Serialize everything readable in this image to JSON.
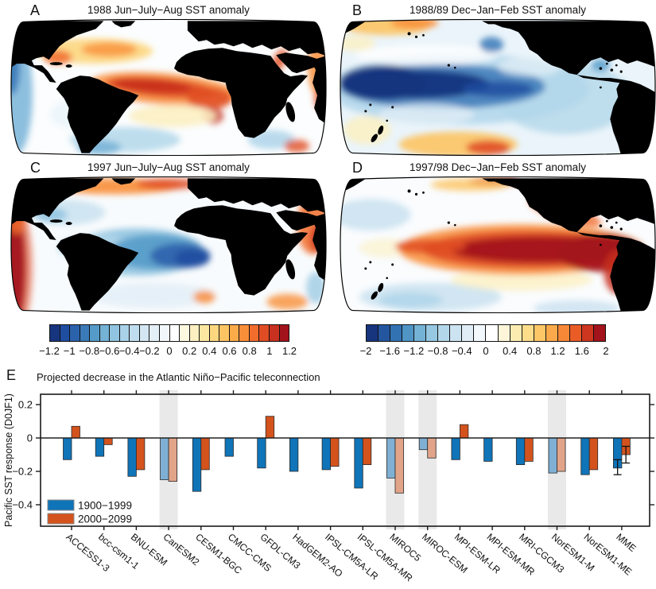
{
  "figure": {
    "panels": [
      {
        "id": "a",
        "label": "A",
        "title": "1988 Jun−July−Aug SST anomaly"
      },
      {
        "id": "b",
        "label": "B",
        "title": "1988/89 Dec−Jan−Feb SST anomaly"
      },
      {
        "id": "c",
        "label": "C",
        "title": "1997 Jun−July−Aug SST anomaly"
      },
      {
        "id": "d",
        "label": "D",
        "title": "1997/98 Dec−Jan−Feb SST anomaly"
      }
    ],
    "colorbars": [
      {
        "id": "ac",
        "ticks": [
          "−1.2",
          "−1",
          "−0.8",
          "−0.6",
          "−0.4",
          "−0.2",
          "0",
          "0.2",
          "0.4",
          "0.6",
          "0.8",
          "1",
          "1.2"
        ],
        "colors": [
          "#17357e",
          "#1f4da0",
          "#2b62ac",
          "#3b7ab8",
          "#549bc9",
          "#74b2d6",
          "#90c4e0",
          "#a9d2e8",
          "#bfddee",
          "#d3e7f3",
          "#e4eff7",
          "#f2f7fb",
          "#ffffff",
          "#fdf8e0",
          "#fcf0c2",
          "#fce7a0",
          "#fdd780",
          "#fdc463",
          "#fcab49",
          "#f98e39",
          "#f26c2b",
          "#e04c23",
          "#c8301f",
          "#a3131b"
        ]
      },
      {
        "id": "bd",
        "ticks": [
          "−2",
          "−1.6",
          "−1.2",
          "−0.8",
          "−0.4",
          "0",
          "0.4",
          "0.8",
          "1.2",
          "1.6",
          "2"
        ],
        "colors": [
          "#17357e",
          "#23569f",
          "#3272b3",
          "#4f95c6",
          "#74b2d6",
          "#96c8e2",
          "#b3d7ea",
          "#cce3f1",
          "#e0edf6",
          "#f2f8fb",
          "#ffffff",
          "#fdf6d9",
          "#fcecb0",
          "#fddd8a",
          "#fdc767",
          "#fba94a",
          "#f68838",
          "#ea5c26",
          "#cf361f",
          "#a3131b"
        ]
      }
    ]
  },
  "chart_data": {
    "type": "bar",
    "panel_label": "E",
    "title": "Projected decrease in the Atlantic Niño−Pacific teleconnection",
    "ylabel": "Pacific SST response (D0JF1)",
    "ylim": [
      -0.53,
      0.26
    ],
    "yticks": [
      {
        "v": 0.2,
        "label": "0.2"
      },
      {
        "v": 0,
        "label": "0"
      },
      {
        "v": -0.2,
        "label": "−0.2"
      },
      {
        "v": -0.4,
        "label": "−0.4"
      }
    ],
    "grid": false,
    "legend_position": "bottom-left",
    "categories": [
      "ACCESS1-3",
      "bcc-csm1-1",
      "BNU-ESM",
      "CanESM2",
      "CESM1-BGC",
      "CMCC-CMS",
      "GFDL-CM3",
      "HadGEM2-AO",
      "IPSL-CM5A-LR",
      "IPSL-CM5A-MR",
      "MIROC5",
      "MIROC-ESM",
      "MPI-ESM-LR",
      "MPI-ESM-MR",
      "MRI-CGCM3",
      "NorESM1-M",
      "NorESM1-ME",
      "MME"
    ],
    "series": [
      {
        "name": "1900−1999",
        "color": "#0f74b8",
        "values": [
          -0.13,
          -0.11,
          -0.23,
          -0.25,
          -0.32,
          -0.11,
          -0.18,
          -0.2,
          -0.19,
          -0.3,
          -0.24,
          -0.07,
          -0.13,
          -0.14,
          -0.16,
          -0.21,
          -0.22,
          -0.18
        ]
      },
      {
        "name": "2000−2099",
        "color": "#d4531d",
        "values": [
          0.07,
          -0.04,
          -0.19,
          -0.26,
          -0.19,
          0,
          0.13,
          0,
          -0.17,
          -0.16,
          -0.33,
          -0.12,
          0.08,
          0,
          -0.14,
          -0.2,
          -0.19,
          -0.1
        ]
      }
    ],
    "highlighted_categories": [
      "CanESM2",
      "MIROC5",
      "MIROC-ESM",
      "NorESM1-M"
    ],
    "highlight_band_color": "#e9e9e9",
    "faded_series_colors": [
      "#7fb0d4",
      "#e2a489"
    ],
    "error_bars": [
      {
        "category": "MME",
        "series": "1900−1999",
        "low": -0.22,
        "high": -0.13
      },
      {
        "category": "MME",
        "series": "2000−2099",
        "low": -0.15,
        "high": -0.05
      }
    ]
  }
}
